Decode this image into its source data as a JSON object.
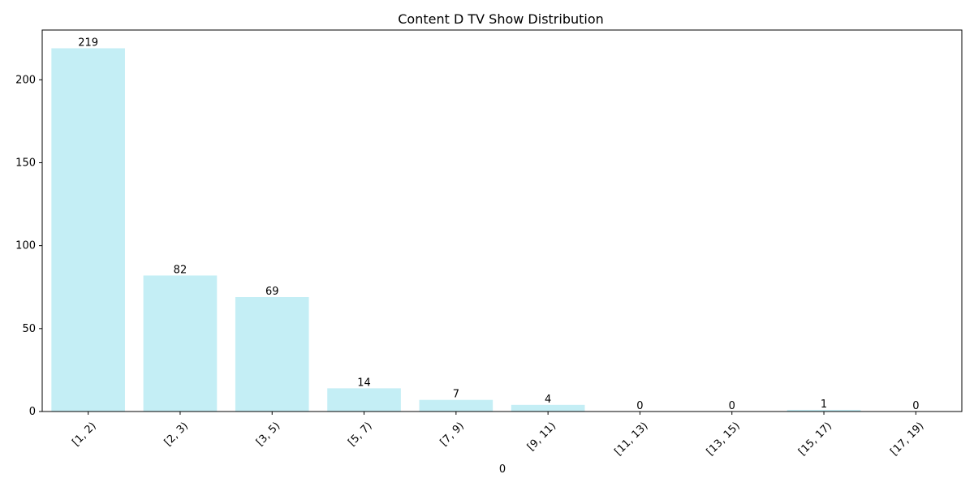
{
  "chart_data": {
    "type": "bar",
    "title": "Content D TV Show Distribution",
    "xlabel": "0",
    "ylabel": "",
    "categories": [
      "[1, 2)",
      "[2, 3)",
      "[3, 5)",
      "[5, 7)",
      "[7, 9)",
      "[9, 11)",
      "[11, 13)",
      "[13, 15)",
      "[15, 17)",
      "[17, 19)"
    ],
    "values": [
      219,
      82,
      69,
      14,
      7,
      4,
      0,
      0,
      1,
      0
    ],
    "ylim": [
      0,
      230
    ],
    "yticks": [
      0,
      50,
      100,
      150,
      200
    ],
    "bar_color": "#c4eef5",
    "grid": false,
    "legend": false
  }
}
